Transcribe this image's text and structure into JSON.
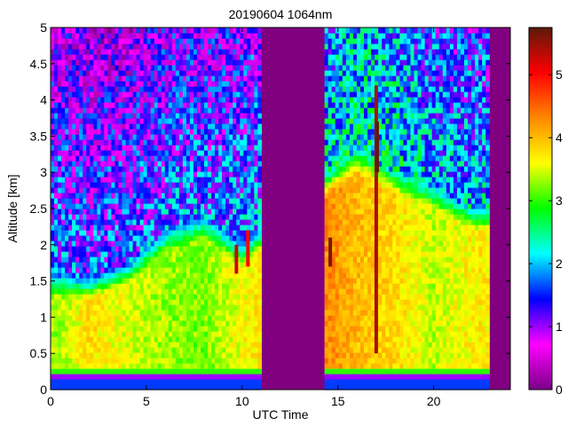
{
  "chart_data": {
    "type": "heatmap",
    "title": "20190604 1064nm",
    "xlabel": "UTC Time",
    "ylabel": "Altitude [km]",
    "xlim": [
      0,
      24
    ],
    "ylim": [
      0,
      5
    ],
    "xticks": [
      0,
      5,
      10,
      15,
      20
    ],
    "yticks": [
      0,
      0.5,
      1,
      1.5,
      2,
      2.5,
      3,
      3.5,
      4,
      4.5,
      5
    ],
    "colorbar": {
      "range": [
        0,
        5.75
      ],
      "ticks": [
        0,
        1,
        2,
        3,
        4,
        5
      ],
      "colormap": [
        "#7a0088",
        "#ff00ff",
        "#0000ff",
        "#00ffff",
        "#00ff00",
        "#ffff00",
        "#ff8800",
        "#ff0000",
        "#5a1a0a"
      ]
    },
    "background_color": "#800080",
    "data_segments": [
      {
        "start_utc": 0.0,
        "end_utc": 11.0
      },
      {
        "start_utc": 14.3,
        "end_utc": 22.9
      }
    ],
    "profiles": [
      {
        "utc": 0.5,
        "layer_top_km": 1.6,
        "layer_value": 3.3,
        "free_trop_value": 1.7
      },
      {
        "utc": 2.0,
        "layer_top_km": 1.55,
        "layer_value": 3.8,
        "free_trop_value": 1.6
      },
      {
        "utc": 4.0,
        "layer_top_km": 1.75,
        "layer_value": 3.5,
        "free_trop_value": 1.6
      },
      {
        "utc": 6.0,
        "layer_top_km": 2.2,
        "layer_value": 3.3,
        "free_trop_value": 1.7
      },
      {
        "utc": 8.0,
        "layer_top_km": 2.4,
        "layer_value": 3.2,
        "free_trop_value": 1.7
      },
      {
        "utc": 10.0,
        "layer_top_km": 2.0,
        "layer_value": 3.6,
        "free_trop_value": 1.8
      },
      {
        "utc": 14.5,
        "layer_top_km": 3.0,
        "layer_value": 4.3,
        "free_trop_value": 2.2
      },
      {
        "utc": 16.0,
        "layer_top_km": 3.3,
        "layer_value": 4.0,
        "free_trop_value": 2.4
      },
      {
        "utc": 18.0,
        "layer_top_km": 3.0,
        "layer_value": 3.8,
        "free_trop_value": 2.3
      },
      {
        "utc": 20.0,
        "layer_top_km": 2.8,
        "layer_value": 3.4,
        "free_trop_value": 2.0
      },
      {
        "utc": 22.0,
        "layer_top_km": 2.5,
        "layer_value": 3.7,
        "free_trop_value": 2.0
      }
    ],
    "features": [
      {
        "utc": 9.7,
        "alt_min_km": 1.6,
        "alt_max_km": 2.0,
        "value": 5.3
      },
      {
        "utc": 10.3,
        "alt_min_km": 1.7,
        "alt_max_km": 2.2,
        "value": 5.0
      },
      {
        "utc": 14.6,
        "alt_min_km": 1.7,
        "alt_max_km": 2.1,
        "value": 5.6
      },
      {
        "utc": 17.0,
        "alt_min_km": 0.5,
        "alt_max_km": 4.2,
        "value": 5.4
      },
      {
        "utc": 17.05,
        "alt_min_km": 3.0,
        "alt_max_km": 3.7,
        "value": 5.7
      }
    ],
    "surface_band_km": [
      0.12,
      0.2
    ],
    "grid": false
  }
}
